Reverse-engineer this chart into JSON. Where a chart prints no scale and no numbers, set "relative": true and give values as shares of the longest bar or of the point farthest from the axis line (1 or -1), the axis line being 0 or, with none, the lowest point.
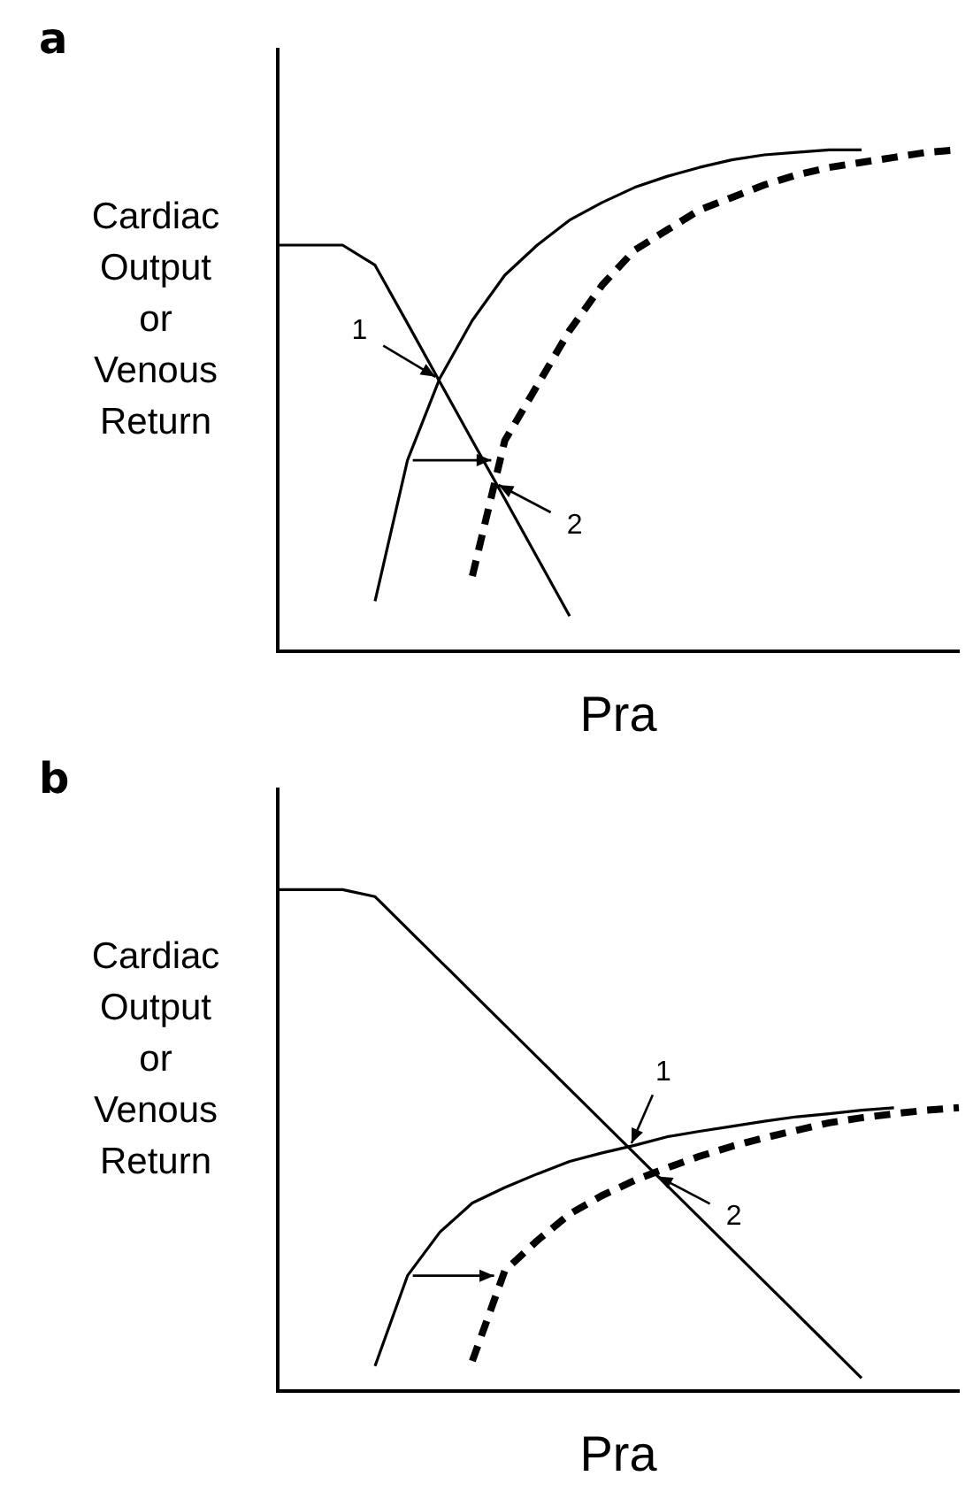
{
  "chart_data": [
    {
      "type": "line",
      "title": "a",
      "xlabel": "Pra",
      "ylabel": "Cardiac\nOutput\nor\nVenous\nReturn",
      "relative": true,
      "grid": false,
      "legend": false,
      "marker": "none",
      "categories": [
        null,
        null,
        null,
        null,
        null,
        null,
        null,
        null,
        null,
        null,
        null,
        null,
        null,
        null,
        null,
        null,
        null,
        null,
        null,
        null,
        null,
        null
      ],
      "series": [
        {
          "color": "#000000",
          "line_style": "solid",
          "values": [
            0.81,
            0.81,
            0.81,
            0.77,
            0.654,
            0.537,
            0.42,
            0.304,
            0.187,
            0.07,
            null,
            null,
            null,
            null,
            null,
            null,
            null,
            null,
            null,
            null,
            null,
            null
          ]
        },
        {
          "color": "#000000",
          "line_style": "solid",
          "values": [
            null,
            null,
            null,
            0.1,
            0.381,
            0.545,
            0.66,
            0.75,
            0.81,
            0.86,
            0.895,
            0.925,
            0.947,
            0.965,
            0.98,
            0.99,
            0.995,
            1.0,
            1.0,
            null,
            null,
            null
          ]
        },
        {
          "color": "#000000",
          "line_style": "dashed",
          "values": [
            null,
            null,
            null,
            null,
            null,
            null,
            0.15,
            0.42,
            0.53,
            0.64,
            0.73,
            0.8,
            0.84,
            0.88,
            0.905,
            0.93,
            0.95,
            0.965,
            0.975,
            0.985,
            0.995,
            1.0
          ]
        }
      ],
      "annotations": [
        "1",
        "2"
      ]
    },
    {
      "type": "line",
      "title": "b",
      "xlabel": "Pra",
      "ylabel": "Cardiac\nOutput\nor\nVenous\nReturn",
      "relative": true,
      "grid": false,
      "legend": false,
      "marker": "none",
      "categories": [
        null,
        null,
        null,
        null,
        null,
        null,
        null,
        null,
        null,
        null,
        null,
        null,
        null,
        null,
        null,
        null,
        null,
        null,
        null,
        null,
        null,
        null
      ],
      "series": [
        {
          "color": "#000000",
          "line_style": "solid",
          "values": [
            1,
            1,
            1,
            0.986,
            0.922,
            0.858,
            0.794,
            0.73,
            0.666,
            0.602,
            0.538,
            0.474,
            0.41,
            0.346,
            0.282,
            0.218,
            0.154,
            0.09,
            0.026,
            null,
            null,
            null
          ]
        },
        {
          "color": "#000000",
          "line_style": "solid",
          "values": [
            null,
            null,
            null,
            0.05,
            0.23,
            0.317,
            0.375,
            0.406,
            0.433,
            0.458,
            0.475,
            0.49,
            0.507,
            0.518,
            0.528,
            0.538,
            0.547,
            0.553,
            0.56,
            0.565,
            null,
            null
          ]
        },
        {
          "color": "#000000",
          "line_style": "dashed",
          "values": [
            null,
            null,
            null,
            null,
            null,
            null,
            0.06,
            0.24,
            0.3,
            0.353,
            0.39,
            0.42,
            0.445,
            0.468,
            0.488,
            0.505,
            0.52,
            0.535,
            0.545,
            0.553,
            0.56,
            0.565
          ]
        }
      ],
      "annotations": [
        "1",
        "2"
      ]
    }
  ]
}
